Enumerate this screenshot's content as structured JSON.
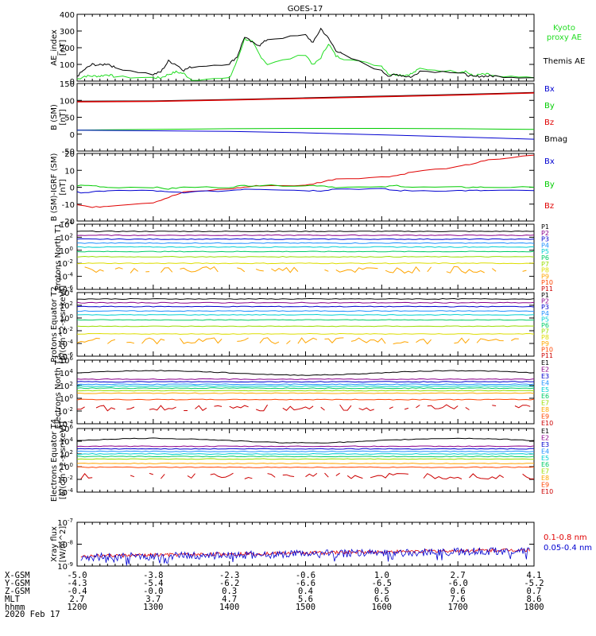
{
  "title": "GOES-17",
  "date_label": "2020 Feb 17",
  "colors": {
    "black": "#000000",
    "red": "#e00000",
    "blue": "#0000d0",
    "green": "#00cc00",
    "bright_green": "#22dd22",
    "dark_red": "#8b0000"
  },
  "footer": {
    "row_labels": [
      "X-GSM",
      "Y-GSM",
      "Z-GSM",
      "MLT",
      "hhmm"
    ],
    "columns": [
      [
        "-5.0",
        "-4.3",
        "-0.4",
        "2.7",
        "1200"
      ],
      [
        "-3.8",
        "-5.4",
        "-0.0",
        "3.7",
        "1300"
      ],
      [
        "-2.3",
        "-6.2",
        "0.3",
        "4.7",
        "1400"
      ],
      [
        "-0.6",
        "-6.6",
        "0.4",
        "5.6",
        "1500"
      ],
      [
        "1.0",
        "-6.5",
        "0.5",
        "6.6",
        "1600"
      ],
      [
        "2.7",
        "-6.0",
        "0.6",
        "7.6",
        "1700"
      ],
      [
        "4.1",
        "-5.2",
        "0.7",
        "8.6",
        "1800"
      ]
    ]
  },
  "chart_data": [
    {
      "type": "line",
      "ylabel": "AE_index [nT]",
      "ylim": [
        0,
        400
      ],
      "yticks": [
        "0",
        "100",
        "200",
        "300",
        "400"
      ],
      "x": [
        1200,
        1210,
        1220,
        1230,
        1240,
        1250,
        1300,
        1310,
        1320,
        1330,
        1340,
        1350,
        1400,
        1410,
        1420,
        1430,
        1440,
        1450,
        1500,
        1510,
        1520,
        1530,
        1540,
        1550,
        1600,
        1610,
        1620,
        1630,
        1640,
        1650,
        1700,
        1710,
        1720,
        1730,
        1740,
        1750,
        1800
      ],
      "series": [
        {
          "name": "Themis AE",
          "color": "#000000",
          "values": [
            30,
            70,
            100,
            95,
            105,
            80,
            40,
            55,
            120,
            100,
            65,
            85,
            105,
            145,
            265,
            230,
            215,
            250,
            275,
            230,
            315,
            255,
            185,
            155,
            60,
            30,
            40,
            30,
            25,
            60,
            55,
            40,
            25,
            30,
            30,
            30,
            20
          ]
        },
        {
          "name": "Kyoto proxy AE",
          "color": "#22dd22",
          "values": [
            10,
            30,
            30,
            30,
            40,
            25,
            20,
            20,
            40,
            55,
            45,
            10,
            15,
            120,
            255,
            235,
            155,
            100,
            160,
            95,
            140,
            225,
            150,
            135,
            90,
            40,
            40,
            35,
            45,
            75,
            55,
            60,
            30,
            40,
            40,
            25,
            20
          ]
        }
      ],
      "legend": [
        {
          "text": "Kyoto",
          "color": "#22dd22"
        },
        {
          "text": "proxy AE",
          "color": "#22dd22"
        },
        {
          "text": "Themis AE",
          "color": "#000000"
        }
      ]
    },
    {
      "type": "line",
      "ylabel": "B (SM) [nT]",
      "ylim": [
        -50,
        150
      ],
      "yticks": [
        "-50",
        "0",
        "50",
        "100",
        "150"
      ],
      "x": [
        1200,
        1300,
        1400,
        1500,
        1600,
        1700,
        1800
      ],
      "series": [
        {
          "name": "Bmag",
          "color": "#000000",
          "values": [
            97,
            98,
            102,
            107,
            112,
            117,
            123
          ]
        },
        {
          "name": "Bz",
          "color": "#e00000",
          "values": [
            96,
            97,
            101,
            106,
            111,
            116,
            122
          ]
        },
        {
          "name": "By",
          "color": "#00cc00",
          "values": [
            12,
            14,
            16,
            17,
            17,
            16,
            14
          ]
        },
        {
          "name": "Bx",
          "color": "#0000d0",
          "values": [
            12,
            10,
            8,
            4,
            -2,
            -8,
            -15
          ]
        }
      ],
      "legend": [
        {
          "text": "Bx",
          "color": "#0000d0"
        },
        {
          "text": "By",
          "color": "#00cc00"
        },
        {
          "text": "Bz",
          "color": "#e00000"
        },
        {
          "text": "Bmag",
          "color": "#000000"
        }
      ]
    },
    {
      "type": "line",
      "ylabel": "B (SM)-IGRF (SM) [nT]",
      "ylim": [
        -20,
        20
      ],
      "yticks": [
        "-20",
        "-10",
        "0",
        "10",
        "20"
      ],
      "x": [
        1200,
        1220,
        1240,
        1300,
        1320,
        1340,
        1400,
        1420,
        1440,
        1500,
        1520,
        1540,
        1600,
        1620,
        1640,
        1700,
        1720,
        1740,
        1800
      ],
      "series": [
        {
          "name": "Bz",
          "color": "#e00000",
          "values": [
            -10,
            -12,
            -11,
            -9,
            -6,
            -3,
            -1,
            0,
            1,
            1,
            3,
            5,
            6,
            7,
            9,
            12,
            14,
            16,
            19
          ]
        },
        {
          "name": "By",
          "color": "#00cc00",
          "values": [
            1,
            1,
            0,
            0,
            -1,
            0,
            0,
            1,
            1,
            1,
            1,
            0,
            0,
            1,
            0,
            0,
            0,
            0,
            0
          ]
        },
        {
          "name": "Bx",
          "color": "#0000d0",
          "values": [
            -3,
            -3,
            -2,
            -2,
            -3,
            -3,
            -2,
            -1,
            -1,
            -2,
            -2,
            -1,
            -1,
            -2,
            -2,
            -2,
            -2,
            -2,
            -2
          ]
        }
      ],
      "legend": [
        {
          "text": "Bx",
          "color": "#0000d0"
        },
        {
          "text": "By",
          "color": "#00cc00"
        },
        {
          "text": "Bz",
          "color": "#e00000"
        }
      ]
    },
    {
      "type": "line",
      "yscale": "log",
      "ylabel": "Protons North T1",
      "ylog_range": [
        -6,
        4
      ],
      "yticks": [
        "10^4",
        "10^2",
        "10^0",
        "10^-2",
        "10^-4",
        "10^-6"
      ],
      "series": [
        {
          "name": "P1",
          "color": "#000000",
          "level": 2.9
        },
        {
          "name": "P2",
          "color": "#8b008b",
          "level": 2.3
        },
        {
          "name": "P3",
          "color": "#0000cd",
          "level": 1.7
        },
        {
          "name": "P4",
          "color": "#1e90ff",
          "level": 1.1
        },
        {
          "name": "P5",
          "color": "#00ced1",
          "level": 0.5
        },
        {
          "name": "P6",
          "color": "#00cc66",
          "level": -0.2
        },
        {
          "name": "P7",
          "color": "#99dd00",
          "level": -1.0
        },
        {
          "name": "P8",
          "color": "#dddd00",
          "level": -2.0
        },
        {
          "name": "P9",
          "color": "#ffa500",
          "level": -3.0
        },
        {
          "name": "P10",
          "color": "#ff4500",
          "level": null
        },
        {
          "name": "P11",
          "color": "#cc0000",
          "level": null
        }
      ]
    },
    {
      "type": "line",
      "yscale": "log",
      "ylabel": "Protons Equator T2 [p/(cm^2-s-sr-keV)]",
      "ylog_range": [
        -6,
        4
      ],
      "yticks": [
        "10^4",
        "10^2",
        "10^0",
        "10^-2",
        "10^-4",
        "10^-6"
      ],
      "series": [
        {
          "name": "P1",
          "color": "#000000",
          "level": 3.0
        },
        {
          "name": "P2",
          "color": "#8b008b",
          "level": 2.4
        },
        {
          "name": "P3",
          "color": "#0000cd",
          "level": 1.8
        },
        {
          "name": "P4",
          "color": "#1e90ff",
          "level": 1.1
        },
        {
          "name": "P5",
          "color": "#00ced1",
          "level": 0.5
        },
        {
          "name": "P6",
          "color": "#00cc66",
          "level": -0.3
        },
        {
          "name": "P7",
          "color": "#99dd00",
          "level": -1.3
        },
        {
          "name": "P8",
          "color": "#dddd00",
          "level": -2.5
        },
        {
          "name": "P9",
          "color": "#ffa500",
          "level": -3.6
        },
        {
          "name": "P10",
          "color": "#ff4500",
          "level": null
        },
        {
          "name": "P11",
          "color": "#cc0000",
          "level": null
        }
      ]
    },
    {
      "type": "line",
      "yscale": "log",
      "ylabel": "Electrons North T3",
      "ylog_range": [
        -4,
        6
      ],
      "yticks": [
        "10^6",
        "10^4",
        "10^2",
        "10^0",
        "10^-2",
        "10^-4"
      ],
      "series": [
        {
          "name": "E1",
          "color": "#000000",
          "level": 4.0
        },
        {
          "name": "E2",
          "color": "#8b008b",
          "level": 3.0
        },
        {
          "name": "E3",
          "color": "#0000cd",
          "level": 2.6
        },
        {
          "name": "E4",
          "color": "#1e90ff",
          "level": 2.2
        },
        {
          "name": "E5",
          "color": "#00ced1",
          "level": 1.9
        },
        {
          "name": "E6",
          "color": "#00cc66",
          "level": 1.6
        },
        {
          "name": "E7",
          "color": "#99dd00",
          "level": 1.2
        },
        {
          "name": "E8",
          "color": "#ffa500",
          "level": 0.8
        },
        {
          "name": "E9",
          "color": "#ff4500",
          "level": -0.2
        },
        {
          "name": "E10",
          "color": "#cc0000",
          "level": -1.5
        }
      ]
    },
    {
      "type": "line",
      "yscale": "log",
      "ylabel": "Electrons Equator T4 [e/(cm^2-s-sr-keV)]",
      "ylog_range": [
        -4,
        6
      ],
      "yticks": [
        "10^6",
        "10^4",
        "10^2",
        "10^0",
        "10^-2",
        "10^-4"
      ],
      "series": [
        {
          "name": "E1",
          "color": "#000000",
          "level": 4.1
        },
        {
          "name": "E2",
          "color": "#8b008b",
          "level": 3.2
        },
        {
          "name": "E3",
          "color": "#0000cd",
          "level": 2.8
        },
        {
          "name": "E4",
          "color": "#1e90ff",
          "level": 2.4
        },
        {
          "name": "E5",
          "color": "#00ced1",
          "level": 2.0
        },
        {
          "name": "E6",
          "color": "#00cc66",
          "level": 1.6
        },
        {
          "name": "E7",
          "color": "#99dd00",
          "level": 1.2
        },
        {
          "name": "E8",
          "color": "#ffa500",
          "level": 0.5
        },
        {
          "name": "E9",
          "color": "#ff4500",
          "level": -0.1
        },
        {
          "name": "E10",
          "color": "#cc0000",
          "level": -1.5
        }
      ]
    },
    {
      "type": "line",
      "yscale": "log",
      "ylabel": "Xray flux [W/m^2]",
      "ylog_range": [
        -9,
        -7
      ],
      "yticks": [
        "10^-7",
        "10^-8",
        "10^-9"
      ],
      "series": [
        {
          "name": "0.1-0.8 nm",
          "color": "#e00000",
          "level_start": -8.55,
          "level_end": -8.25
        },
        {
          "name": "0.05-0.4 nm",
          "color": "#0000d0",
          "level_start": -8.6,
          "level_end": -8.3
        }
      ],
      "legend": [
        {
          "text": "0.1-0.8 nm",
          "color": "#e00000"
        },
        {
          "text": "0.05-0.4 nm",
          "color": "#0000d0"
        }
      ]
    }
  ]
}
